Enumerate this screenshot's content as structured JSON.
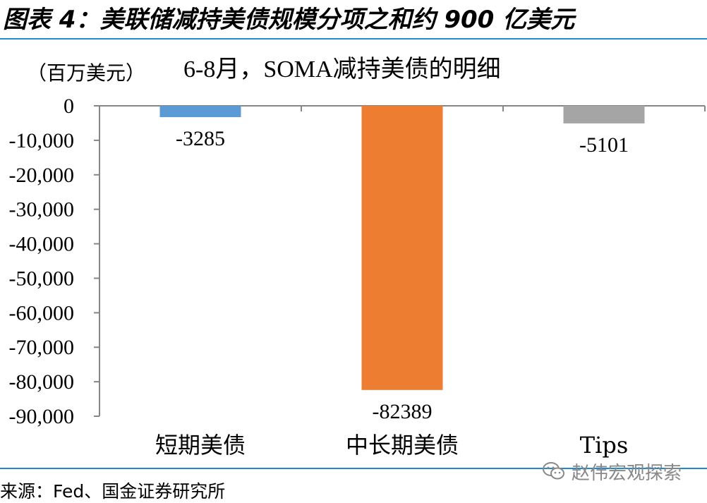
{
  "figure": {
    "title": "图表 4：美联储减持美债规模分项之和约 900 亿美元",
    "source": "来源：Fed、国金证券研究所",
    "watermark": "赵伟宏观探索",
    "watermark_icon": "wechat-icon"
  },
  "colors": {
    "rule": "#1f8ad0",
    "short": "#5b9bd5",
    "long": "#ed7d31",
    "tips": "#a5a5a5",
    "axis": "#868686"
  },
  "chart_data": {
    "type": "bar",
    "title": "6-8月，SOMA减持美债的明细",
    "ylabel": "（百万美元）",
    "xlabel": "",
    "categories": [
      "短期美债",
      "中长期美债",
      "Tips"
    ],
    "values": [
      -3285,
      -82389,
      -5101
    ],
    "data_labels": [
      "-3285",
      "-82389",
      "-5101"
    ],
    "ylim": [
      -90000,
      0
    ],
    "yticks": [
      0,
      -10000,
      -20000,
      -30000,
      -40000,
      -50000,
      -60000,
      -70000,
      -80000,
      -90000
    ],
    "ytick_labels": [
      "0",
      "-10,000",
      "-20,000",
      "-30,000",
      "-40,000",
      "-50,000",
      "-60,000",
      "-70,000",
      "-80,000",
      "-90,000"
    ],
    "grid": false,
    "legend": "none"
  }
}
